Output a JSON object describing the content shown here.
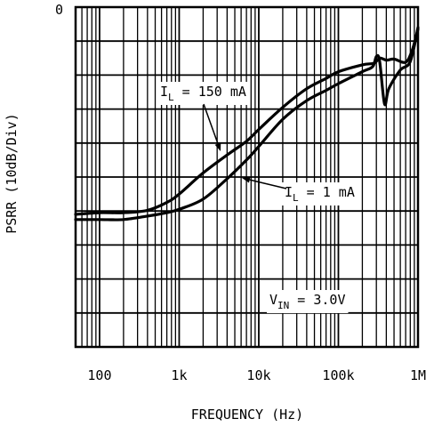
{
  "chart_data": {
    "type": "line",
    "xlabel": "FREQUENCY (Hz)",
    "ylabel": "PSRR (10dB/Div)",
    "xscale": "log",
    "xlim": [
      50,
      1000000
    ],
    "x_ticks": [
      {
        "value": 100,
        "label": "100"
      },
      {
        "value": 1000,
        "label": "1k"
      },
      {
        "value": 10000,
        "label": "10k"
      },
      {
        "value": 100000,
        "label": "100k"
      },
      {
        "value": 1000000,
        "label": "1M"
      }
    ],
    "ylim": [
      -100,
      0
    ],
    "y_step": 10,
    "y_tick_labels": [
      {
        "value": 0,
        "label": "0"
      }
    ],
    "grid": true,
    "series": [
      {
        "name": "I_L = 150 mA",
        "label_main": "I",
        "label_sub": "L",
        "label_rest": " = 150 mA",
        "x": [
          50,
          100,
          200,
          400,
          700,
          1000,
          2000,
          4000,
          7000,
          10000,
          20000,
          40000,
          70000,
          100000,
          200000,
          280000,
          330000,
          400000,
          500000,
          700000,
          850000,
          1000000
        ],
        "y": [
          -61,
          -60.5,
          -60.5,
          -59.8,
          -57.5,
          -55,
          -48.8,
          -43.5,
          -39.5,
          -36,
          -29.5,
          -24,
          -21,
          -19,
          -17,
          -16.5,
          -15,
          -15.6,
          -15.3,
          -16.2,
          -12.5,
          -6.5
        ]
      },
      {
        "name": "I_L = 1 mA",
        "label_main": "I",
        "label_sub": "L",
        "label_rest": " = 1 mA",
        "x": [
          50,
          100,
          200,
          400,
          700,
          1000,
          2000,
          4000,
          7000,
          10000,
          20000,
          40000,
          70000,
          100000,
          200000,
          270000,
          300000,
          330000,
          380000,
          430000,
          600000,
          800000,
          1000000
        ],
        "y": [
          -62.5,
          -62.5,
          -62.5,
          -61.5,
          -60.5,
          -59.5,
          -56.5,
          -50.5,
          -45,
          -41,
          -33,
          -27.5,
          -24.5,
          -22.5,
          -19,
          -17.5,
          -14.5,
          -16,
          -28.5,
          -24,
          -18.5,
          -16,
          -6
        ]
      }
    ],
    "annotations": [
      {
        "main": "V",
        "sub": "IN",
        "rest": " = 3.0V"
      }
    ]
  }
}
